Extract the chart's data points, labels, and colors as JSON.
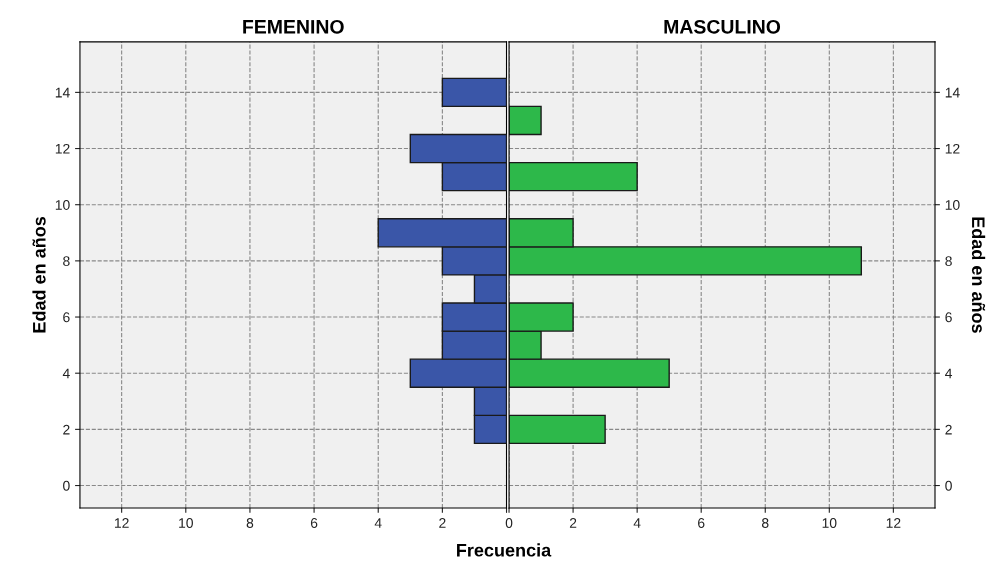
{
  "chart_data": [
    {
      "type": "histogram",
      "orientation": "horizontal",
      "title": "FEMENINO",
      "ylabel": "Edad en años",
      "xlabel": "Frecuencia",
      "color": "#3a56a8",
      "bins": [
        1.5,
        2.5,
        3.5,
        4.5,
        5.5,
        6.5,
        7.5,
        8.5,
        9.5,
        10.5,
        11.5,
        12.5,
        13.5,
        14.5
      ],
      "values": [
        1,
        1,
        3,
        2,
        2,
        1,
        2,
        4,
        0,
        2,
        3,
        0,
        2
      ],
      "xlim": [
        13.3,
        0
      ],
      "xticks": [
        12,
        10,
        8,
        6,
        4,
        2,
        {
          "value": 0,
          "label": null
        }
      ],
      "ylim": [
        -0.8,
        15.8
      ],
      "yticks": [
        0,
        2,
        4,
        6,
        8,
        10,
        12,
        14
      ],
      "grid": true
    },
    {
      "type": "histogram",
      "orientation": "horizontal",
      "title": "MASCULINO",
      "ylabel": "Edad en años",
      "color": "#2db84a",
      "bins": [
        1.5,
        2.5,
        3.5,
        4.5,
        5.5,
        6.5,
        7.5,
        8.5,
        9.5,
        10.5,
        11.5,
        12.5,
        13.5,
        14.5
      ],
      "values": [
        3,
        0,
        5,
        1,
        2,
        0,
        11,
        2,
        0,
        4,
        0,
        1,
        0
      ],
      "xlim": [
        0,
        13.3
      ],
      "xticks": [
        0,
        2,
        4,
        6,
        8,
        10,
        12
      ],
      "ylim": [
        -0.8,
        15.8
      ],
      "yticks": [
        0,
        2,
        4,
        6,
        8,
        10,
        12,
        14
      ],
      "grid": true
    }
  ]
}
